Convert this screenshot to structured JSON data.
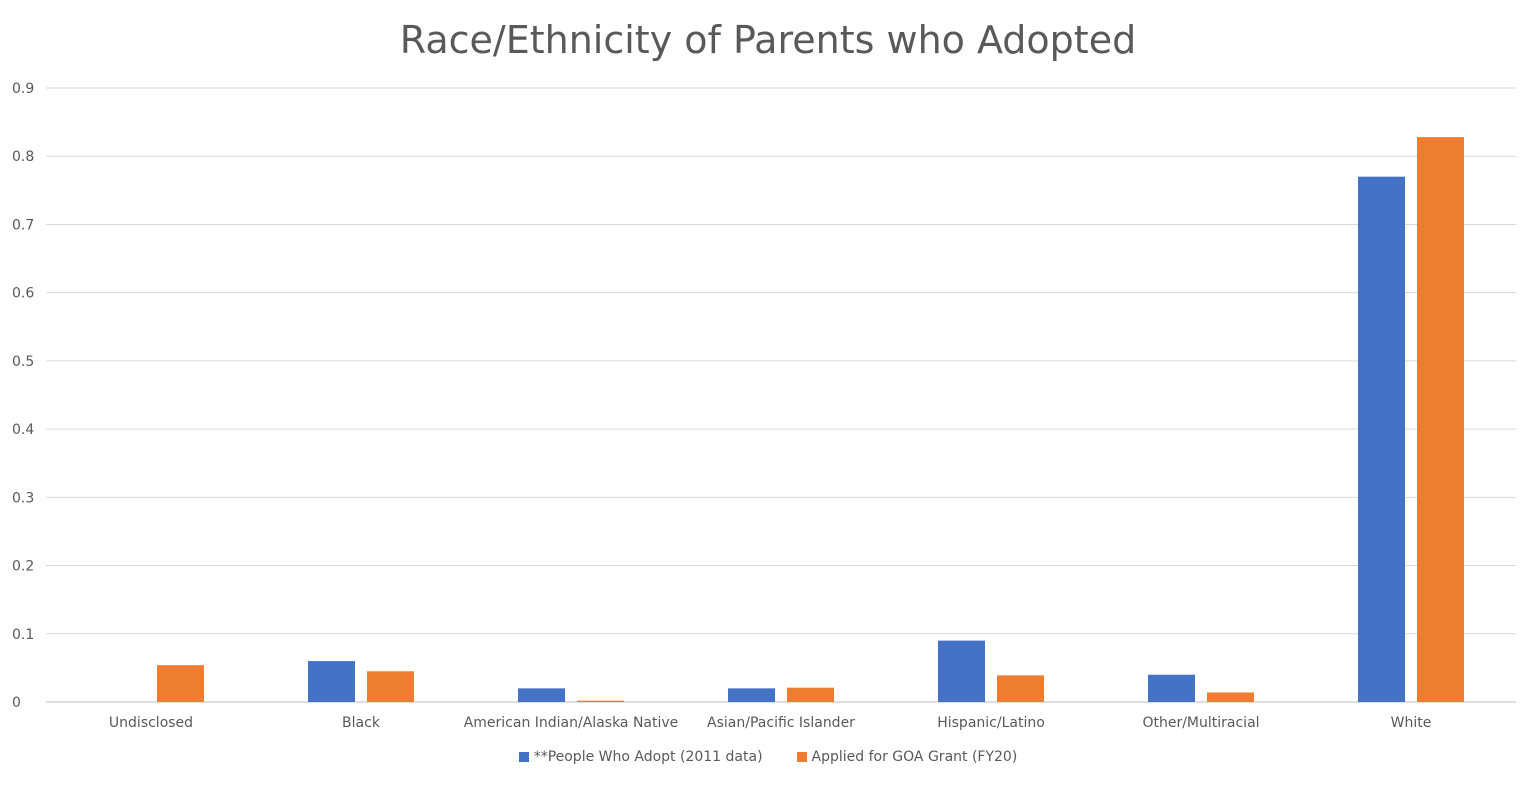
{
  "chart_data": {
    "type": "bar",
    "title": "Race/Ethnicity of Parents who Adopted",
    "categories": [
      "Undisclosed",
      "Black",
      "American Indian/Alaska Native",
      "Asian/Pacific Islander",
      "Hispanic/Latino",
      "Other/Multiracial",
      "White"
    ],
    "series": [
      {
        "name": "**People Who Adopt (2011 data)",
        "color": "#4472C4",
        "values": [
          0,
          0.06,
          0.02,
          0.02,
          0.09,
          0.04,
          0.77
        ]
      },
      {
        "name": "Applied for GOA Grant (FY20)",
        "color": "#ED7D31",
        "values": [
          0.054,
          0.045,
          0.002,
          0.021,
          0.039,
          0.014,
          0.828
        ]
      }
    ],
    "ylim": [
      0,
      0.9
    ],
    "yticks": [
      "0",
      "0.1",
      "0.2",
      "0.3",
      "0.4",
      "0.5",
      "0.6",
      "0.7",
      "0.8",
      "0.9"
    ],
    "grid": true,
    "legend_position": "bottom"
  }
}
